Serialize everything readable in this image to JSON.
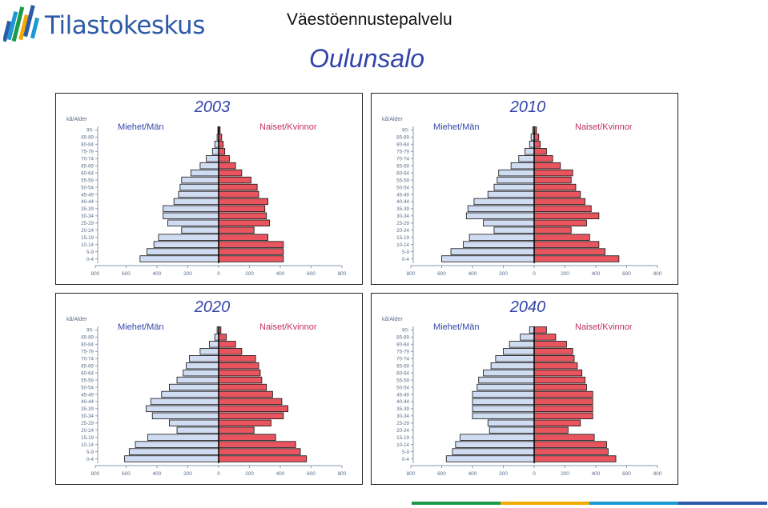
{
  "header": {
    "brand": "Tilastokeskus",
    "service": "Väestöennustepalvelu",
    "place": "Oulunsalo"
  },
  "colors": {
    "men": "#cfdcf2",
    "women": "#e8555e",
    "title": "#3344aa",
    "men_label": "#3344aa",
    "women_label": "#c03060",
    "tick": "#5a6e8a",
    "footer": [
      "#1a9a4a",
      "#f2a900",
      "#1c98d4",
      "#2a5aa8"
    ]
  },
  "chart_data": [
    {
      "type": "bar",
      "title": "2003",
      "unit_label": "kã/Alder",
      "men_label": "Miehet/Män",
      "women_label": "Naiset/Kvinnor",
      "categories": [
        "0-4",
        "5-9",
        "10-14",
        "15-19",
        "20-24",
        "25-29",
        "30-34",
        "35-39",
        "40-44",
        "45-49",
        "50-54",
        "55-59",
        "60-64",
        "65-69",
        "70-74",
        "75-79",
        "80-84",
        "85-89",
        "90-"
      ],
      "series": [
        {
          "name": "Miehet/Män",
          "values": [
            510,
            465,
            420,
            390,
            240,
            330,
            360,
            360,
            290,
            260,
            250,
            240,
            180,
            120,
            80,
            40,
            25,
            10,
            5
          ]
        },
        {
          "name": "Naiset/Kvinnor",
          "values": [
            420,
            420,
            420,
            320,
            230,
            330,
            310,
            300,
            320,
            260,
            250,
            210,
            150,
            110,
            70,
            40,
            30,
            20,
            10
          ]
        }
      ],
      "x_ticks": [
        "800",
        "600",
        "400",
        "200",
        "0",
        "200",
        "400",
        "600",
        "800"
      ],
      "xlim": [
        -800,
        800
      ]
    },
    {
      "type": "bar",
      "title": "2010",
      "unit_label": "kã/Alder",
      "men_label": "Miehet/Män",
      "women_label": "Naiset/Kvinnor",
      "categories": [
        "0-4",
        "5-9",
        "10-14",
        "15-19",
        "20-24",
        "25-29",
        "30-34",
        "35-39",
        "40-44",
        "45-49",
        "50-54",
        "55-59",
        "60-64",
        "65-69",
        "70-74",
        "75-79",
        "80-84",
        "85-89",
        "90-"
      ],
      "series": [
        {
          "name": "Miehet/Män",
          "values": [
            600,
            540,
            460,
            420,
            260,
            330,
            440,
            430,
            390,
            300,
            260,
            240,
            230,
            150,
            100,
            60,
            30,
            20,
            10
          ]
        },
        {
          "name": "Naiset/Kvinnor",
          "values": [
            550,
            460,
            420,
            360,
            240,
            340,
            420,
            370,
            330,
            300,
            270,
            240,
            250,
            170,
            120,
            80,
            40,
            30,
            15
          ]
        }
      ],
      "x_ticks": [
        "800",
        "600",
        "400",
        "200",
        "0",
        "200",
        "400",
        "600",
        "800"
      ],
      "xlim": [
        -800,
        800
      ]
    },
    {
      "type": "bar",
      "title": "2020",
      "unit_label": "kã/Alder",
      "men_label": "Miehet/Män",
      "women_label": "Naiset/Kvinnor",
      "categories": [
        "0-4",
        "5-9",
        "10-14",
        "15-19",
        "20-24",
        "25-29",
        "30-34",
        "35-39",
        "40-44",
        "45-49",
        "50-54",
        "55-59",
        "60-64",
        "65-69",
        "70-74",
        "75-79",
        "80-84",
        "85-89",
        "90-"
      ],
      "series": [
        {
          "name": "Miehet/Män",
          "values": [
            610,
            580,
            540,
            460,
            270,
            320,
            430,
            470,
            440,
            370,
            320,
            270,
            230,
            210,
            190,
            120,
            60,
            25,
            10
          ]
        },
        {
          "name": "Naiset/Kvinnor",
          "values": [
            570,
            530,
            500,
            370,
            230,
            340,
            420,
            450,
            410,
            350,
            310,
            280,
            270,
            260,
            240,
            150,
            110,
            50,
            15
          ]
        }
      ],
      "x_ticks": [
        "800",
        "600",
        "400",
        "200",
        "0",
        "200",
        "400",
        "600",
        "800"
      ],
      "xlim": [
        -800,
        800
      ]
    },
    {
      "type": "bar",
      "title": "2040",
      "unit_label": "kã/Alder",
      "men_label": "Miehet/Män",
      "women_label": "Naiset/Kvinnor",
      "categories": [
        "0-4",
        "5-9",
        "10-14",
        "15-19",
        "20-24",
        "25-29",
        "30-34",
        "35-39",
        "40-44",
        "45-49",
        "50-54",
        "55-59",
        "60-64",
        "65-69",
        "70-74",
        "75-79",
        "80-84",
        "85-89",
        "90-"
      ],
      "series": [
        {
          "name": "Miehet/Män",
          "values": [
            570,
            530,
            510,
            480,
            290,
            300,
            400,
            400,
            400,
            400,
            370,
            360,
            330,
            280,
            250,
            200,
            160,
            90,
            30
          ]
        },
        {
          "name": "Naiset/Kvinnor",
          "values": [
            530,
            480,
            470,
            390,
            220,
            300,
            380,
            380,
            380,
            380,
            340,
            330,
            310,
            280,
            260,
            250,
            210,
            140,
            80
          ]
        }
      ],
      "x_ticks": [
        "800",
        "600",
        "400",
        "200",
        "0",
        "200",
        "400",
        "600",
        "800"
      ],
      "xlim": [
        -800,
        800
      ]
    }
  ]
}
